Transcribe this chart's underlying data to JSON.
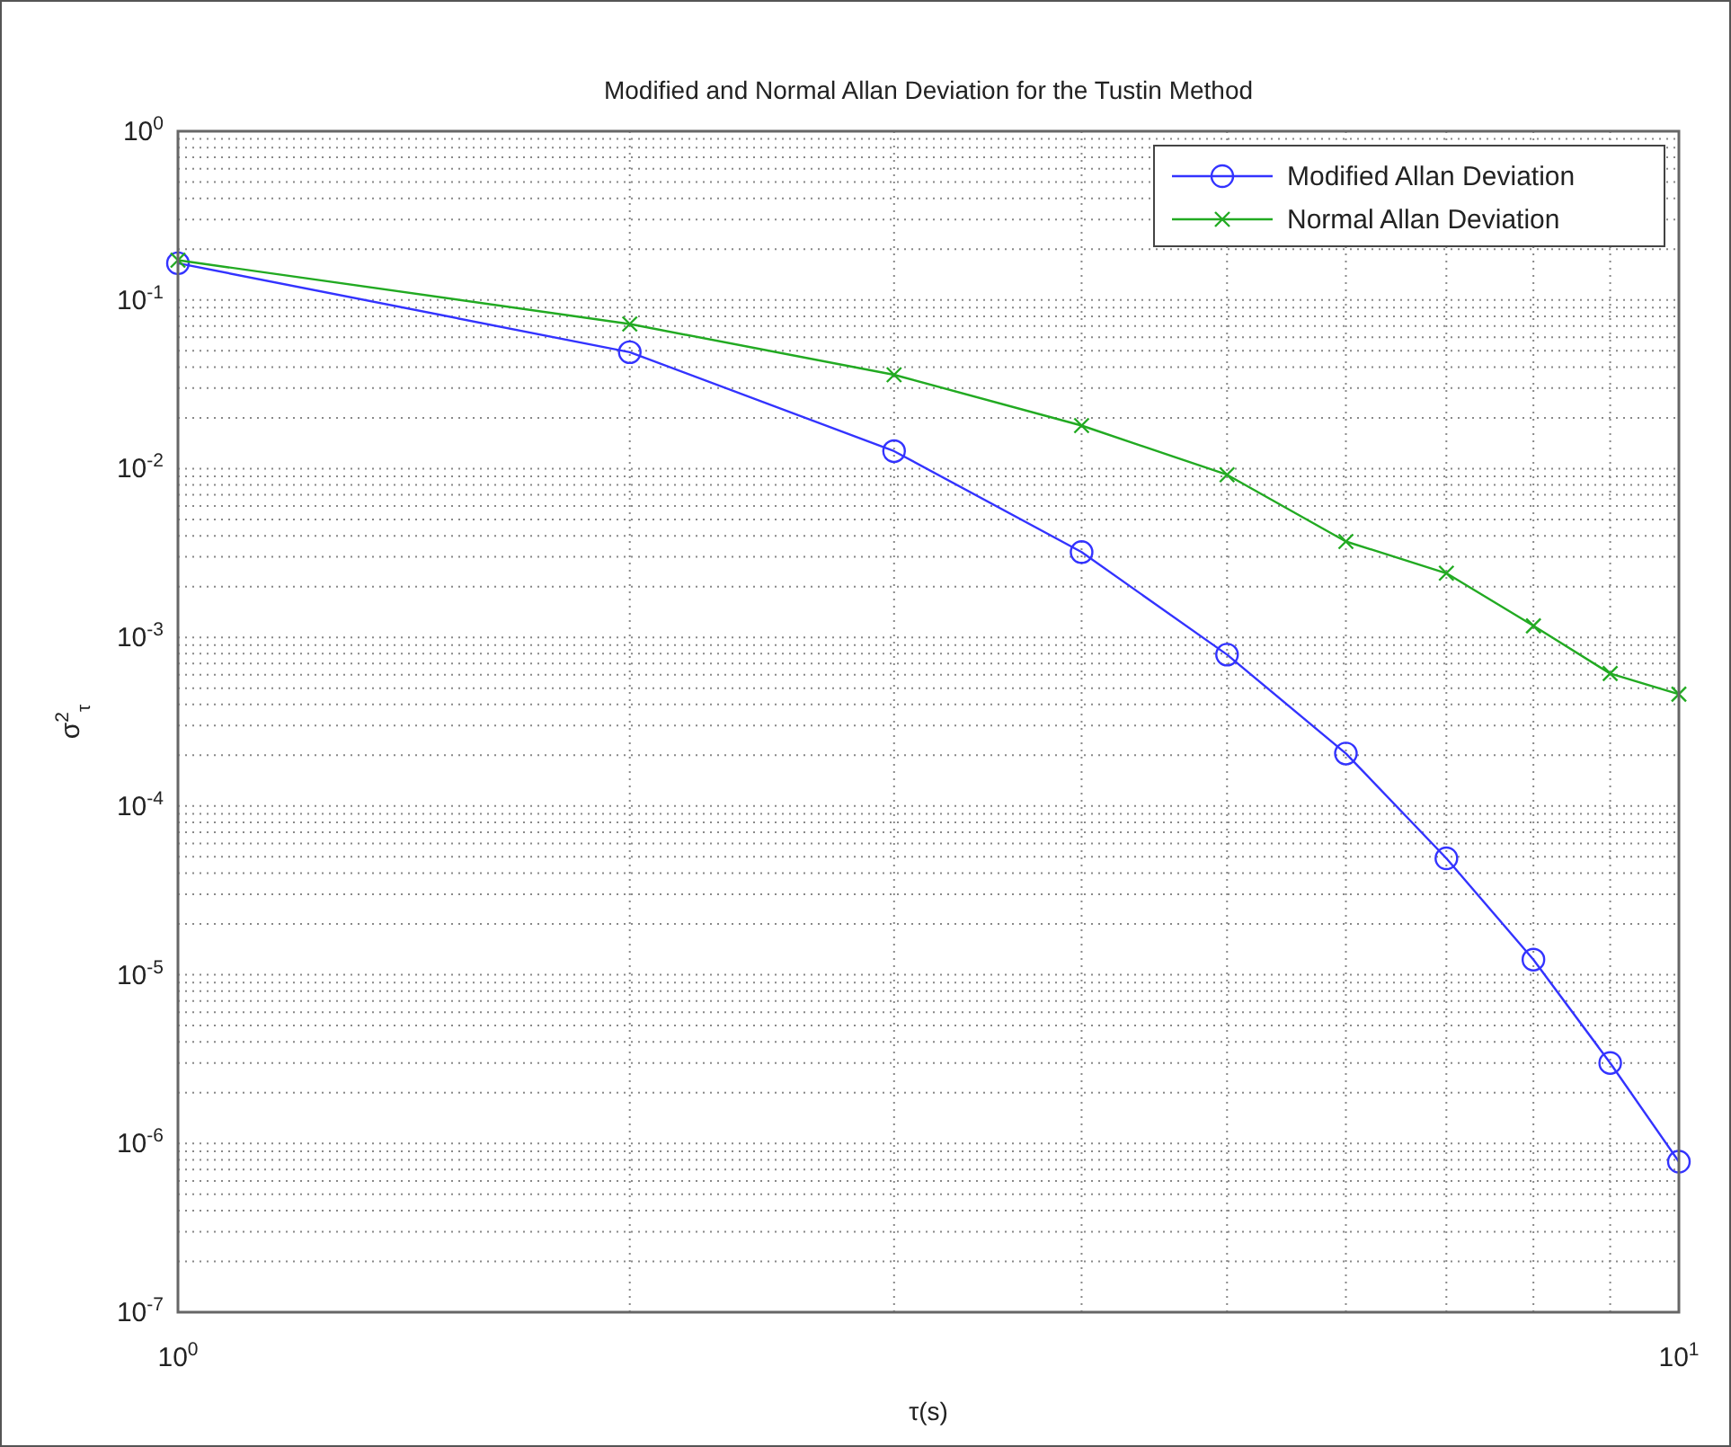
{
  "chart_data": {
    "type": "line",
    "title": "Modified and Normal Allan Deviation for the Tustin Method",
    "xlabel": "τ(s)",
    "ylabel": "σ$^{2}$$_{τ}$",
    "log": "xy",
    "grid": true,
    "legend": "top right",
    "xlim": [
      1,
      10
    ],
    "ylim": [
      1e-07,
      1
    ],
    "xticks": [
      {
        "value": 1,
        "label": "10$^{0}$"
      },
      {
        "value": 10,
        "label": "10$^{1}$"
      }
    ],
    "yticks": [
      {
        "value": 1e-07,
        "label": "10$^{-7}$"
      },
      {
        "value": 1e-06,
        "label": "10$^{-6}$"
      },
      {
        "value": 1e-05,
        "label": "10$^{-5}$"
      },
      {
        "value": 0.0001,
        "label": "10$^{-4}$"
      },
      {
        "value": 0.001,
        "label": "10$^{-3}$"
      },
      {
        "value": 0.01,
        "label": "10$^{-2}$"
      },
      {
        "value": 0.1,
        "label": "10$^{-1}$"
      },
      {
        "value": 1,
        "label": "10$^{0}$"
      }
    ],
    "x": [
      1,
      2,
      3,
      4,
      5,
      6,
      7,
      8,
      9,
      10
    ],
    "series": [
      {
        "name": "Modified Allan Deviation",
        "color": "#3333ff",
        "marker": "circle",
        "values": [
          0.165,
          0.049,
          0.0127,
          0.0032,
          0.00079,
          0.000205,
          4.9e-05,
          1.23e-05,
          3e-06,
          7.8e-07
        ]
      },
      {
        "name": "Normal Allan Deviation",
        "color": "#22aa22",
        "marker": "cross",
        "values": [
          0.172,
          0.072,
          0.036,
          0.018,
          0.0092,
          0.0037,
          0.0024,
          0.00117,
          0.00061,
          0.00046
        ]
      }
    ]
  }
}
